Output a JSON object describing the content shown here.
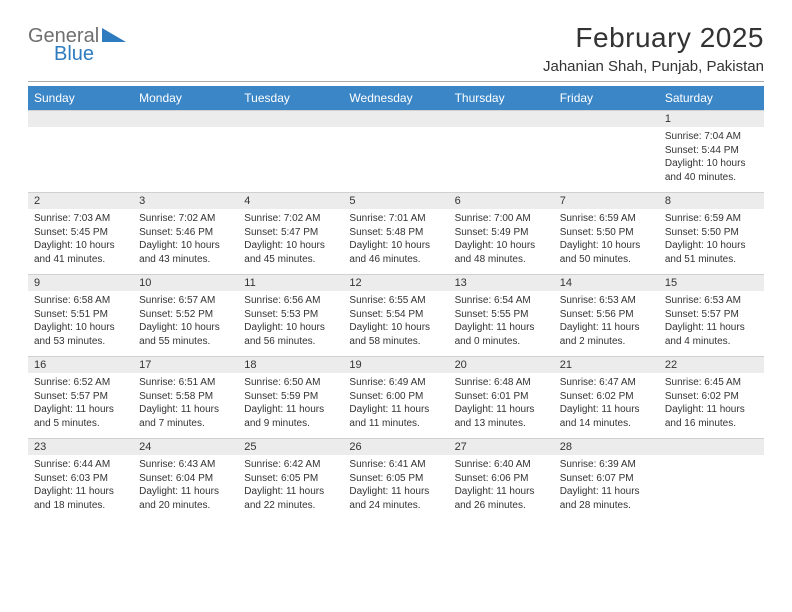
{
  "logo": {
    "word1": "General",
    "word2": "Blue",
    "word1_color": "#6f6f6f",
    "word2_color": "#2e7bbf",
    "shape_color": "#2e7bbf"
  },
  "title": "February 2025",
  "location": "Jahanian Shah, Punjab, Pakistan",
  "colors": {
    "header_bg": "#3b86c6",
    "header_fg": "#ffffff",
    "daynum_bg": "#ececec",
    "rule": "#d0d0d0"
  },
  "dow": [
    "Sunday",
    "Monday",
    "Tuesday",
    "Wednesday",
    "Thursday",
    "Friday",
    "Saturday"
  ],
  "weeks": [
    [
      {
        "n": "",
        "text": ""
      },
      {
        "n": "",
        "text": ""
      },
      {
        "n": "",
        "text": ""
      },
      {
        "n": "",
        "text": ""
      },
      {
        "n": "",
        "text": ""
      },
      {
        "n": "",
        "text": ""
      },
      {
        "n": "1",
        "text": "Sunrise: 7:04 AM\nSunset: 5:44 PM\nDaylight: 10 hours and 40 minutes."
      }
    ],
    [
      {
        "n": "2",
        "text": "Sunrise: 7:03 AM\nSunset: 5:45 PM\nDaylight: 10 hours and 41 minutes."
      },
      {
        "n": "3",
        "text": "Sunrise: 7:02 AM\nSunset: 5:46 PM\nDaylight: 10 hours and 43 minutes."
      },
      {
        "n": "4",
        "text": "Sunrise: 7:02 AM\nSunset: 5:47 PM\nDaylight: 10 hours and 45 minutes."
      },
      {
        "n": "5",
        "text": "Sunrise: 7:01 AM\nSunset: 5:48 PM\nDaylight: 10 hours and 46 minutes."
      },
      {
        "n": "6",
        "text": "Sunrise: 7:00 AM\nSunset: 5:49 PM\nDaylight: 10 hours and 48 minutes."
      },
      {
        "n": "7",
        "text": "Sunrise: 6:59 AM\nSunset: 5:50 PM\nDaylight: 10 hours and 50 minutes."
      },
      {
        "n": "8",
        "text": "Sunrise: 6:59 AM\nSunset: 5:50 PM\nDaylight: 10 hours and 51 minutes."
      }
    ],
    [
      {
        "n": "9",
        "text": "Sunrise: 6:58 AM\nSunset: 5:51 PM\nDaylight: 10 hours and 53 minutes."
      },
      {
        "n": "10",
        "text": "Sunrise: 6:57 AM\nSunset: 5:52 PM\nDaylight: 10 hours and 55 minutes."
      },
      {
        "n": "11",
        "text": "Sunrise: 6:56 AM\nSunset: 5:53 PM\nDaylight: 10 hours and 56 minutes."
      },
      {
        "n": "12",
        "text": "Sunrise: 6:55 AM\nSunset: 5:54 PM\nDaylight: 10 hours and 58 minutes."
      },
      {
        "n": "13",
        "text": "Sunrise: 6:54 AM\nSunset: 5:55 PM\nDaylight: 11 hours and 0 minutes."
      },
      {
        "n": "14",
        "text": "Sunrise: 6:53 AM\nSunset: 5:56 PM\nDaylight: 11 hours and 2 minutes."
      },
      {
        "n": "15",
        "text": "Sunrise: 6:53 AM\nSunset: 5:57 PM\nDaylight: 11 hours and 4 minutes."
      }
    ],
    [
      {
        "n": "16",
        "text": "Sunrise: 6:52 AM\nSunset: 5:57 PM\nDaylight: 11 hours and 5 minutes."
      },
      {
        "n": "17",
        "text": "Sunrise: 6:51 AM\nSunset: 5:58 PM\nDaylight: 11 hours and 7 minutes."
      },
      {
        "n": "18",
        "text": "Sunrise: 6:50 AM\nSunset: 5:59 PM\nDaylight: 11 hours and 9 minutes."
      },
      {
        "n": "19",
        "text": "Sunrise: 6:49 AM\nSunset: 6:00 PM\nDaylight: 11 hours and 11 minutes."
      },
      {
        "n": "20",
        "text": "Sunrise: 6:48 AM\nSunset: 6:01 PM\nDaylight: 11 hours and 13 minutes."
      },
      {
        "n": "21",
        "text": "Sunrise: 6:47 AM\nSunset: 6:02 PM\nDaylight: 11 hours and 14 minutes."
      },
      {
        "n": "22",
        "text": "Sunrise: 6:45 AM\nSunset: 6:02 PM\nDaylight: 11 hours and 16 minutes."
      }
    ],
    [
      {
        "n": "23",
        "text": "Sunrise: 6:44 AM\nSunset: 6:03 PM\nDaylight: 11 hours and 18 minutes."
      },
      {
        "n": "24",
        "text": "Sunrise: 6:43 AM\nSunset: 6:04 PM\nDaylight: 11 hours and 20 minutes."
      },
      {
        "n": "25",
        "text": "Sunrise: 6:42 AM\nSunset: 6:05 PM\nDaylight: 11 hours and 22 minutes."
      },
      {
        "n": "26",
        "text": "Sunrise: 6:41 AM\nSunset: 6:05 PM\nDaylight: 11 hours and 24 minutes."
      },
      {
        "n": "27",
        "text": "Sunrise: 6:40 AM\nSunset: 6:06 PM\nDaylight: 11 hours and 26 minutes."
      },
      {
        "n": "28",
        "text": "Sunrise: 6:39 AM\nSunset: 6:07 PM\nDaylight: 11 hours and 28 minutes."
      },
      {
        "n": "",
        "text": ""
      }
    ]
  ]
}
